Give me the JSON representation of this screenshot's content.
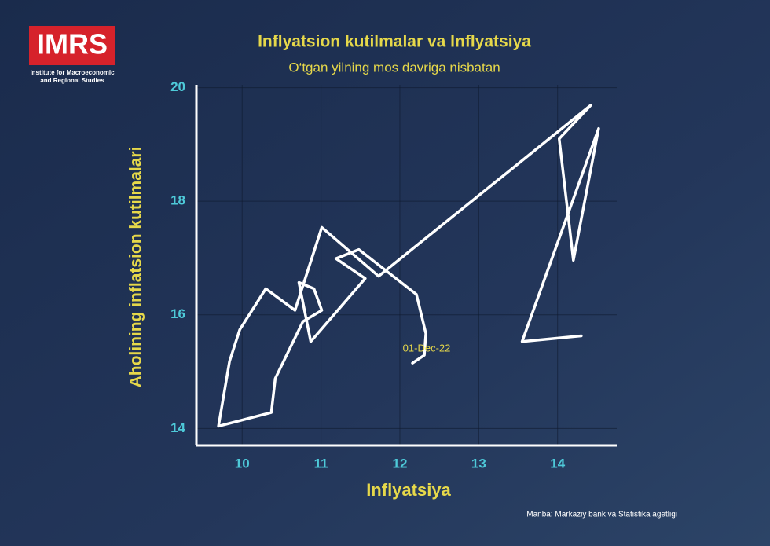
{
  "logo": {
    "name": "IMRS",
    "subtitle_line1": "Institute for Macroeconomic",
    "subtitle_line2": "and Regional Studies"
  },
  "source": "Manba: Markaziy bank va Statistika agetligi",
  "chart_data": {
    "type": "line",
    "title": "Inflyatsion kutilmalar va Inflyatsiya",
    "subtitle": "O‘tgan yilning mos davriga nisbatan",
    "x_label": "Inflyatsiya",
    "y_label": "Aholining inflatsion kutilmalari",
    "x": [
      12.16,
      12.31,
      12.33,
      12.21,
      11.48,
      11.19,
      11.56,
      10.87,
      10.72,
      10.91,
      11.01,
      10.77,
      10.42,
      10.37,
      9.7,
      9.84,
      9.97,
      10.3,
      10.67,
      11.01,
      11.73,
      14.42,
      14.02,
      14.2,
      14.52,
      13.55,
      14.3
    ],
    "y": [
      15.15,
      15.29,
      15.67,
      16.36,
      17.15,
      16.99,
      16.64,
      15.53,
      16.57,
      16.46,
      16.08,
      15.88,
      14.88,
      14.28,
      14.04,
      15.18,
      15.74,
      16.46,
      16.08,
      17.54,
      16.68,
      19.69,
      19.1,
      16.96,
      19.28,
      15.53,
      15.63
    ],
    "color": "#ffffff",
    "annotation": {
      "text": "01-Dec-22",
      "point": 0
    },
    "xlim": [
      9.42,
      14.75
    ],
    "ylim": [
      13.7,
      20.05
    ],
    "xticks": [
      10,
      11,
      12,
      13,
      14
    ],
    "yticks": [
      14,
      16,
      18,
      20
    ],
    "grid": true
  }
}
